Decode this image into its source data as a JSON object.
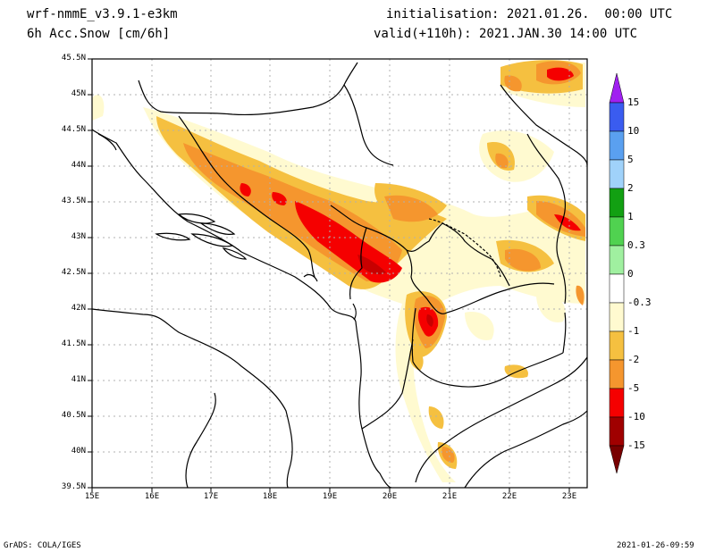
{
  "header": {
    "model": "wrf-nmmE_v3.9.1-e3km",
    "variable": "6h Acc.Snow [cm/6h]",
    "init": "initialisation: 2021.01.26.  00:00 UTC",
    "valid": "valid(+110h): 2021.JAN.30 14:00 UTC"
  },
  "footer": {
    "left": "GrADS: COLA/IGES",
    "right": "2021-01-26-09:59"
  },
  "axes": {
    "lat_labels": [
      "45.5N",
      "45N",
      "44.5N",
      "44N",
      "43.5N",
      "43N",
      "42.5N",
      "42N",
      "41.5N",
      "41N",
      "40.5N",
      "40N",
      "39.5N"
    ],
    "lon_labels": [
      "15E",
      "16E",
      "17E",
      "18E",
      "19E",
      "20E",
      "21E",
      "22E",
      "23E"
    ]
  },
  "colorbar": {
    "levels": [
      "15",
      "10",
      "5",
      "2",
      "1",
      "0.3",
      "0",
      "-0.3",
      "-1",
      "-2",
      "-5",
      "-10",
      "-15"
    ],
    "colors": [
      "#a020f0",
      "#3a5cf0",
      "#5aa0f0",
      "#a0d2fa",
      "#12a012",
      "#50d250",
      "#a0f0a0",
      "#ffffff",
      "#fffad0",
      "#f5c040",
      "#f5962e",
      "#f50000",
      "#c80000",
      "#a00000",
      "#780000"
    ]
  },
  "snow_colors": {
    "light": "#fffad0",
    "moderate": "#f5c040",
    "heavy": "#f5962e",
    "veryheavy": "#f50000",
    "extreme": "#c80000"
  }
}
